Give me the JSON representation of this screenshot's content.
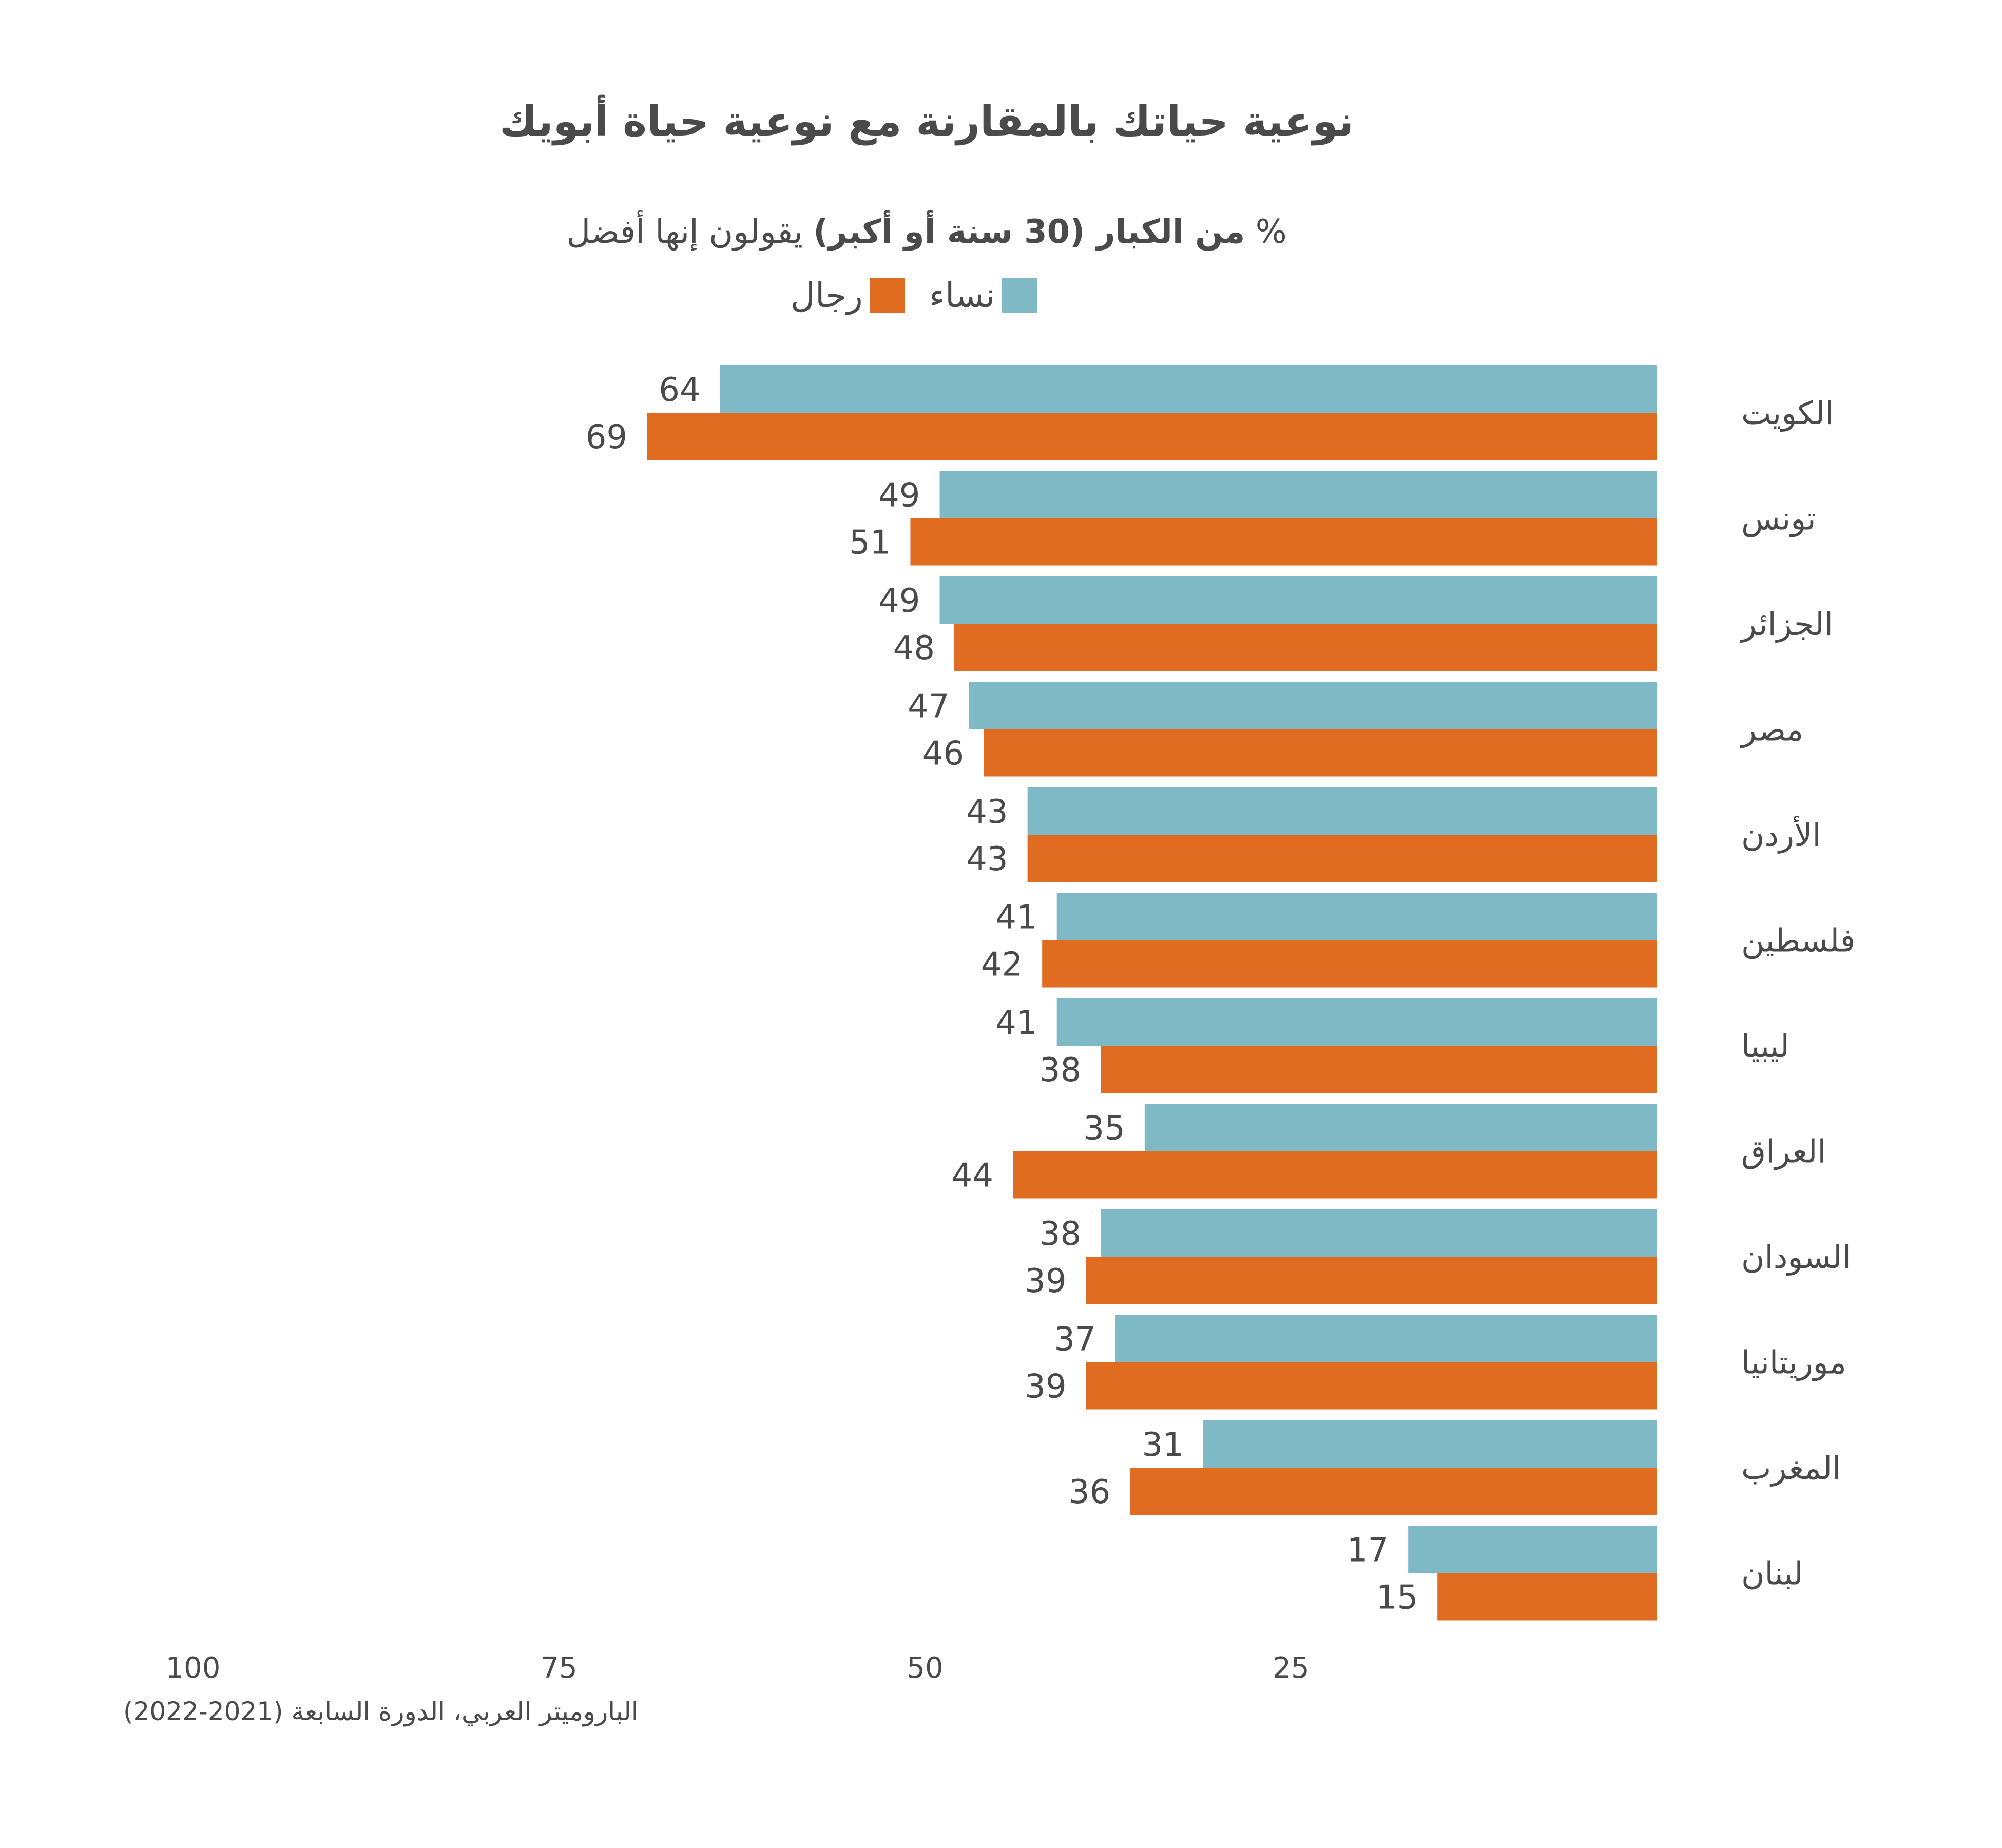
{
  "chart_data": {
    "type": "bar",
    "orientation": "horizontal",
    "title": "نوعية حياتك بالمقارنة مع نوعية حياة أبويك",
    "subtitle_bold": "من الكبار (30 سنة أو أكبر)",
    "subtitle_prefix": "%",
    "subtitle_suffix": "يقولون إنها أفضل",
    "categories": [
      "الكويت",
      "تونس",
      "الجزائر",
      "مصر",
      "الأردن",
      "فلسطين",
      "ليبيا",
      "العراق",
      "السودان",
      "موريتانيا",
      "المغرب",
      "لبنان"
    ],
    "series": [
      {
        "name": "نساء",
        "color": "#7fb9c6",
        "values": [
          64,
          49,
          49,
          47,
          43,
          41,
          41,
          35,
          38,
          37,
          31,
          17
        ]
      },
      {
        "name": "رجال",
        "color": "#e06c22",
        "values": [
          69,
          51,
          48,
          46,
          43,
          42,
          38,
          44,
          39,
          39,
          36,
          15
        ]
      }
    ],
    "xlim": [
      0,
      100
    ],
    "x_direction": "right-to-left",
    "xticks": [
      100,
      75,
      50,
      25
    ],
    "grid": false,
    "legend_position": "top-center"
  },
  "source": "الباروميتر العربي، الدورة السابعة (2021-2022)"
}
